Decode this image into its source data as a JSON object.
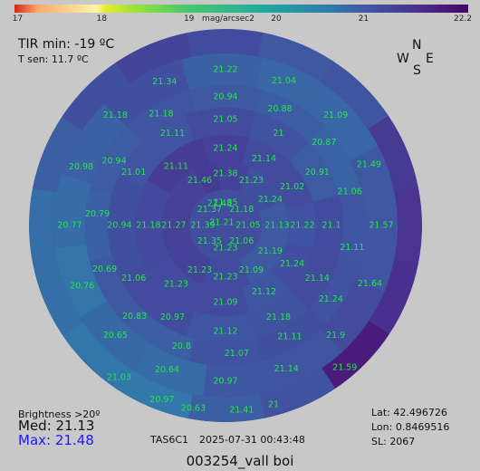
{
  "colors": {
    "label": "#22e84a",
    "background": "#c8c8c8",
    "max_text": "#1a1aff"
  },
  "header": {
    "unit_label": "mag/arcsec2",
    "tir_min": "TIR min: -19 ºC",
    "t_sen": "T sen: 11.7 ºC"
  },
  "compass": {
    "n": "N",
    "w": "W",
    "s": "S",
    "e": "E"
  },
  "footer": {
    "brightness_label": "Brightness >20º",
    "median": "Med: 21.13",
    "max": "Max: 21.48",
    "station": "TAS6C1",
    "datetime": "2025-07-31   00:43:48",
    "lat": "Lat: 42.496726",
    "lon": "Lon: 0.8469516",
    "sl": "SL:  2067",
    "caption": "003254_vall boi"
  },
  "chart_data": {
    "type": "heatmap",
    "projection": "polar sky map",
    "colorbar": {
      "min": 17,
      "max": 22.2,
      "ticks": [
        {
          "value": 17,
          "label": "17"
        },
        {
          "value": 18,
          "label": "18"
        },
        {
          "value": 19,
          "label": "19"
        },
        {
          "value": 20,
          "label": "20"
        },
        {
          "value": 21,
          "label": "21"
        },
        {
          "value": 22.2,
          "label": "22.2"
        }
      ]
    },
    "center_value": 21.21,
    "rings": [
      {
        "ring": 1,
        "values": [
          "21.35",
          "21.18",
          "21.05",
          "21.06",
          "21.23",
          "21.35",
          "21.39",
          "21.37",
          "21.48"
        ],
        "angles": [
          0,
          45,
          90,
          135,
          180,
          225,
          270,
          315,
          345
        ]
      },
      {
        "ring": 2,
        "values": [
          "21.38",
          "21.23",
          "21.24",
          "21.13",
          "21.19",
          "21.09",
          "21.23",
          "21.23",
          "21.27",
          "21.46"
        ],
        "angles": [
          0,
          30,
          60,
          90,
          120,
          150,
          180,
          210,
          270,
          330
        ]
      },
      {
        "ring": 3,
        "values": [
          "21.24",
          "21.14",
          "21.02",
          "21.22",
          "21.24",
          "21.12",
          "21.09",
          "21.23",
          "21.18",
          "21.11"
        ],
        "angles": [
          0,
          30,
          60,
          90,
          120,
          150,
          180,
          220,
          270,
          320
        ]
      },
      {
        "ring": 4,
        "values": [
          "21.05",
          "21",
          "20.91",
          "21.1",
          "21.14",
          "21.18",
          "21.12",
          "20.97",
          "21.06",
          "20.94",
          "21.01",
          "21.11"
        ],
        "angles": [
          0,
          30,
          60,
          90,
          120,
          150,
          180,
          210,
          240,
          270,
          300,
          330
        ]
      },
      {
        "ring": 5,
        "values": [
          "20.94",
          "20.88",
          "20.87",
          "21.06",
          "21.11",
          "21.24",
          "21.11",
          "21.07",
          "20.8",
          "20.83",
          "20.69",
          "20.79",
          "20.94",
          "21.18"
        ],
        "angles": [
          0,
          25,
          50,
          75,
          100,
          125,
          150,
          175,
          200,
          225,
          250,
          275,
          300,
          330
        ]
      },
      {
        "ring": 6,
        "values": [
          "21.22",
          "21.04",
          "21.09",
          "21.49",
          "21.57",
          "21.64",
          "21.9",
          "21.14",
          "20.97",
          "20.64",
          "20.65",
          "20.76",
          "20.77",
          "20.98",
          "21.18",
          "21.34"
        ],
        "angles": [
          0,
          22,
          45,
          67,
          90,
          112,
          135,
          157,
          180,
          202,
          225,
          247,
          270,
          292,
          315,
          337
        ]
      },
      {
        "ring": 7,
        "values": [
          "21.59",
          "21",
          "21.41",
          "20.63",
          "20.97",
          "21.03"
        ],
        "angles": [
          140,
          165,
          175,
          190,
          200,
          215
        ]
      }
    ]
  }
}
